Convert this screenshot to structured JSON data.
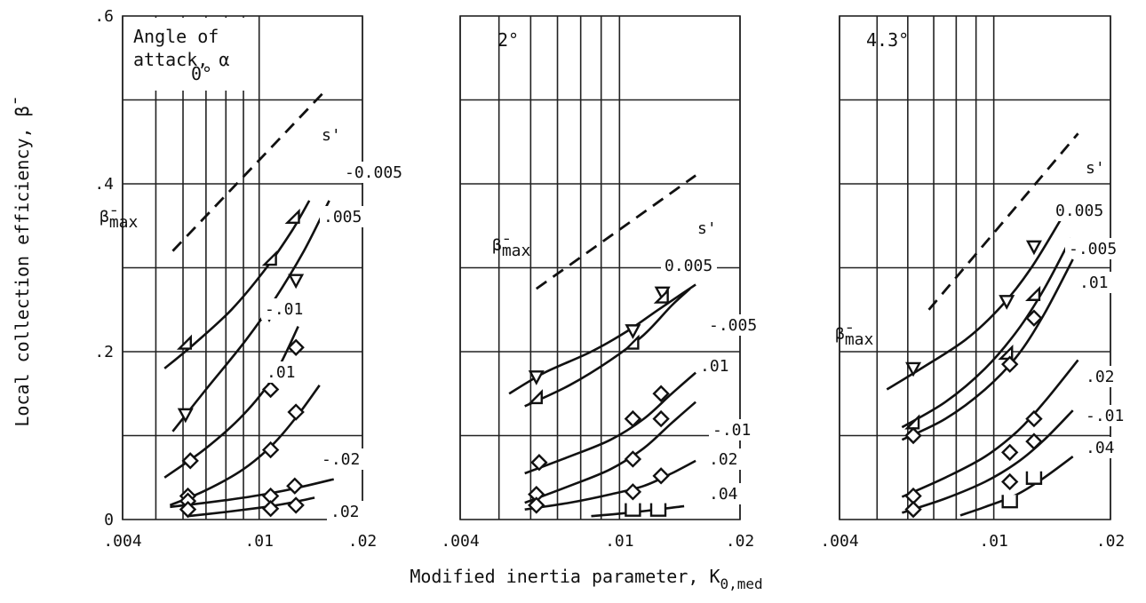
{
  "chart_data": {
    "type": "line",
    "xlabel": "Modified inertia parameter, K",
    "xlabel_subscript": "0,med",
    "ylabel": "Local collection efficiency, β̄",
    "x_scale": "log",
    "xlim": [
      0.004,
      0.02
    ],
    "ylim": [
      0,
      0.6
    ],
    "x_ticks": [
      ".004",
      ".01",
      ".02"
    ],
    "y_ticks": [
      "0",
      ".2",
      ".4",
      ".6"
    ],
    "grid": true,
    "colors": {
      "ink": "#111111",
      "grid": "#222222",
      "background": "#ffffff"
    },
    "panels": [
      {
        "title_lines": [
          "Angle of",
          "attack, α"
        ],
        "angle_label": "0°",
        "s_header": "s'",
        "beta_max": {
          "label": "β̄",
          "sub": "max",
          "x": [
            0.0056,
            0.0155
          ],
          "y": [
            0.32,
            0.51
          ]
        },
        "series": [
          {
            "name": "-0.005",
            "marker": "triangle-left",
            "x": [
              0.0053,
              0.0065,
              0.0083,
              0.0105,
              0.0125,
              0.014
            ],
            "y": [
              0.18,
              0.21,
              0.25,
              0.3,
              0.345,
              0.38
            ],
            "points": [
              [
                0.0061,
                0.21
              ],
              [
                0.0108,
                0.31
              ],
              [
                0.0126,
                0.36
              ]
            ]
          },
          {
            "name": ".005",
            "marker": "triangle-down",
            "x": [
              0.0056,
              0.007,
              0.009,
              0.011,
              0.0135,
              0.016
            ],
            "y": [
              0.105,
              0.155,
              0.21,
              0.26,
              0.32,
              0.38
            ],
            "points": [
              [
                0.0061,
                0.125
              ],
              [
                0.0107,
                0.245
              ],
              [
                0.0128,
                0.285
              ]
            ]
          },
          {
            "name": "-.01",
            "marker": "diamond",
            "x": [
              0.0053,
              0.007,
              0.009,
              0.011,
              0.013
            ],
            "y": [
              0.05,
              0.085,
              0.125,
              0.17,
              0.23
            ],
            "points": [
              [
                0.0063,
                0.07
              ],
              [
                0.0108,
                0.155
              ],
              [
                0.0128,
                0.205
              ]
            ]
          },
          {
            "name": ".01",
            "marker": "diamond",
            "x": [
              0.0055,
              0.007,
              0.009,
              0.011,
              0.013,
              0.015
            ],
            "y": [
              0.017,
              0.035,
              0.06,
              0.09,
              0.125,
              0.16
            ],
            "points": [
              [
                0.0062,
                0.028
              ],
              [
                0.0108,
                0.083
              ],
              [
                0.0128,
                0.128
              ]
            ]
          },
          {
            "name": "-.02",
            "marker": "diamond",
            "x": [
              0.0055,
              0.007,
              0.009,
              0.011,
              0.013,
              0.0165
            ],
            "y": [
              0.015,
              0.02,
              0.026,
              0.032,
              0.038,
              0.048
            ],
            "points": [
              [
                0.0062,
                0.022
              ],
              [
                0.0108,
                0.028
              ],
              [
                0.0127,
                0.04
              ]
            ]
          },
          {
            "name": ".02",
            "marker": "diamond",
            "x": [
              0.0062,
              0.008,
              0.01,
              0.012,
              0.0145
            ],
            "y": [
              0.004,
              0.009,
              0.014,
              0.019,
              0.026
            ],
            "points": [
              [
                0.0062,
                0.012
              ],
              [
                0.0108,
                0.013
              ],
              [
                0.0128,
                0.017
              ]
            ]
          }
        ]
      },
      {
        "title_lines": [],
        "angle_label": "2°",
        "s_header": "s'",
        "beta_max": {
          "label": "β̄",
          "sub": "max",
          "x": [
            0.0062,
            0.0155
          ],
          "y": [
            0.275,
            0.41
          ]
        },
        "series": [
          {
            "name": "0.005",
            "marker": "triangle-down",
            "x": [
              0.0053,
              0.0065,
              0.0085,
              0.0105,
              0.0125,
              0.0155
            ],
            "y": [
              0.15,
              0.175,
              0.2,
              0.225,
              0.25,
              0.28
            ],
            "points": [
              [
                0.0062,
                0.17
              ],
              [
                0.0108,
                0.225
              ],
              [
                0.0128,
                0.27
              ]
            ]
          },
          {
            "name": "-.005",
            "marker": "triangle-left",
            "x": [
              0.0058,
              0.0075,
              0.0095,
              0.0115,
              0.0135,
              0.015
            ],
            "y": [
              0.135,
              0.16,
              0.19,
              0.22,
              0.255,
              0.275
            ],
            "points": [
              [
                0.0062,
                0.145
              ],
              [
                0.0108,
                0.21
              ],
              [
                0.0128,
                0.265
              ]
            ]
          },
          {
            "name": ".01",
            "marker": "diamond",
            "x": [
              0.0058,
              0.0075,
              0.0095,
              0.0115,
              0.0135,
              0.0155
            ],
            "y": [
              0.055,
              0.075,
              0.095,
              0.12,
              0.15,
              0.175
            ],
            "points": [
              [
                0.0063,
                0.068
              ],
              [
                0.0108,
                0.12
              ],
              [
                0.0127,
                0.15
              ]
            ]
          },
          {
            "name": "-.01",
            "marker": "diamond",
            "x": [
              0.0058,
              0.0075,
              0.0095,
              0.0115,
              0.0135,
              0.0155
            ],
            "y": [
              0.02,
              0.04,
              0.06,
              0.085,
              0.115,
              0.14
            ],
            "points": [
              [
                0.0062,
                0.03
              ],
              [
                0.0108,
                0.072
              ],
              [
                0.0127,
                0.12
              ]
            ]
          },
          {
            "name": ".02",
            "marker": "diamond",
            "x": [
              0.0058,
              0.0075,
              0.0095,
              0.0115,
              0.0135,
              0.0155
            ],
            "y": [
              0.012,
              0.02,
              0.03,
              0.04,
              0.055,
              0.07
            ],
            "points": [
              [
                0.0062,
                0.017
              ],
              [
                0.0108,
                0.033
              ],
              [
                0.0127,
                0.052
              ]
            ]
          },
          {
            "name": ".04",
            "marker": "square-open",
            "x": [
              0.0085,
              0.01,
              0.012,
              0.0145
            ],
            "y": [
              0.004,
              0.007,
              0.011,
              0.016
            ],
            "points": [
              [
                0.0108,
                0.012
              ],
              [
                0.0125,
                0.012
              ]
            ]
          }
        ]
      },
      {
        "title_lines": [],
        "angle_label": "4.3°",
        "s_header": "s'",
        "beta_max": {
          "label": "β̄",
          "sub": "max",
          "x": [
            0.0068,
            0.0165
          ],
          "y": [
            0.25,
            0.46
          ]
        },
        "series": [
          {
            "name": "0.005",
            "marker": "triangle-down",
            "x": [
              0.0053,
              0.0065,
              0.0085,
              0.0105,
              0.0125,
              0.015
            ],
            "y": [
              0.155,
              0.18,
              0.215,
              0.255,
              0.3,
              0.36
            ],
            "points": [
              [
                0.0062,
                0.18
              ],
              [
                0.0108,
                0.26
              ],
              [
                0.0127,
                0.325
              ]
            ]
          },
          {
            "name": "-.005",
            "marker": "triangle-left",
            "x": [
              0.0058,
              0.0075,
              0.0095,
              0.0115,
              0.0135,
              0.0158
            ],
            "y": [
              0.11,
              0.14,
              0.18,
              0.225,
              0.275,
              0.335
            ],
            "points": [
              [
                0.0062,
                0.115
              ],
              [
                0.0108,
                0.198
              ],
              [
                0.0127,
                0.268
              ]
            ]
          },
          {
            "name": ".01",
            "marker": "diamond",
            "x": [
              0.0058,
              0.0075,
              0.0095,
              0.0115,
              0.0135,
              0.016
            ],
            "y": [
              0.095,
              0.12,
              0.155,
              0.195,
              0.245,
              0.31
            ],
            "points": [
              [
                0.0062,
                0.1
              ],
              [
                0.011,
                0.185
              ],
              [
                0.0127,
                0.24
              ]
            ]
          },
          {
            "name": ".02",
            "marker": "diamond",
            "x": [
              0.0058,
              0.0075,
              0.0095,
              0.0115,
              0.0135,
              0.0165
            ],
            "y": [
              0.027,
              0.05,
              0.075,
              0.105,
              0.14,
              0.19
            ],
            "points": [
              [
                0.0062,
                0.028
              ],
              [
                0.011,
                0.08
              ],
              [
                0.0127,
                0.12
              ]
            ]
          },
          {
            "name": "-.01",
            "marker": "diamond",
            "x": [
              0.0058,
              0.0075,
              0.0095,
              0.0115,
              0.0135,
              0.016
            ],
            "y": [
              0.008,
              0.025,
              0.045,
              0.068,
              0.095,
              0.13
            ],
            "points": [
              [
                0.0062,
                0.012
              ],
              [
                0.011,
                0.045
              ],
              [
                0.0127,
                0.093
              ]
            ]
          },
          {
            "name": ".04",
            "marker": "square-open",
            "x": [
              0.0082,
              0.0095,
              0.0115,
              0.0135,
              0.016
            ],
            "y": [
              0.005,
              0.015,
              0.03,
              0.05,
              0.075
            ],
            "points": [
              [
                0.011,
                0.022
              ],
              [
                0.0127,
                0.05
              ]
            ]
          }
        ]
      }
    ]
  }
}
